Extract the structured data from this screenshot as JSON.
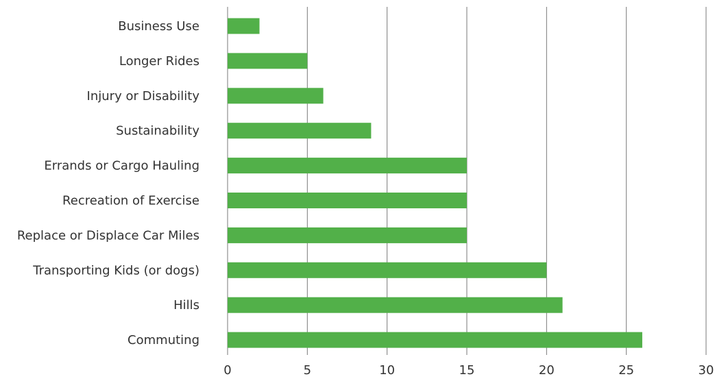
{
  "chart_data": {
    "type": "bar",
    "orientation": "horizontal",
    "categories": [
      "Business Use",
      "Longer Rides",
      "Injury or Disability",
      "Sustainability",
      "Errands or Cargo Hauling",
      "Recreation of Exercise",
      "Replace or Displace Car Miles",
      "Transporting Kids (or dogs)",
      "Hills",
      "Commuting"
    ],
    "values": [
      2,
      5,
      6,
      9,
      15,
      15,
      15,
      20,
      21,
      26
    ],
    "title": "",
    "xlabel": "",
    "ylabel": "",
    "xlim": [
      0,
      30
    ],
    "xticks": [
      "0",
      "5",
      "10",
      "15",
      "20",
      "25",
      "30"
    ],
    "grid": "vertical",
    "legend": "none",
    "colors": {
      "bar": "#52b049",
      "grid": "#7a7a7a",
      "text": "#333333"
    }
  }
}
